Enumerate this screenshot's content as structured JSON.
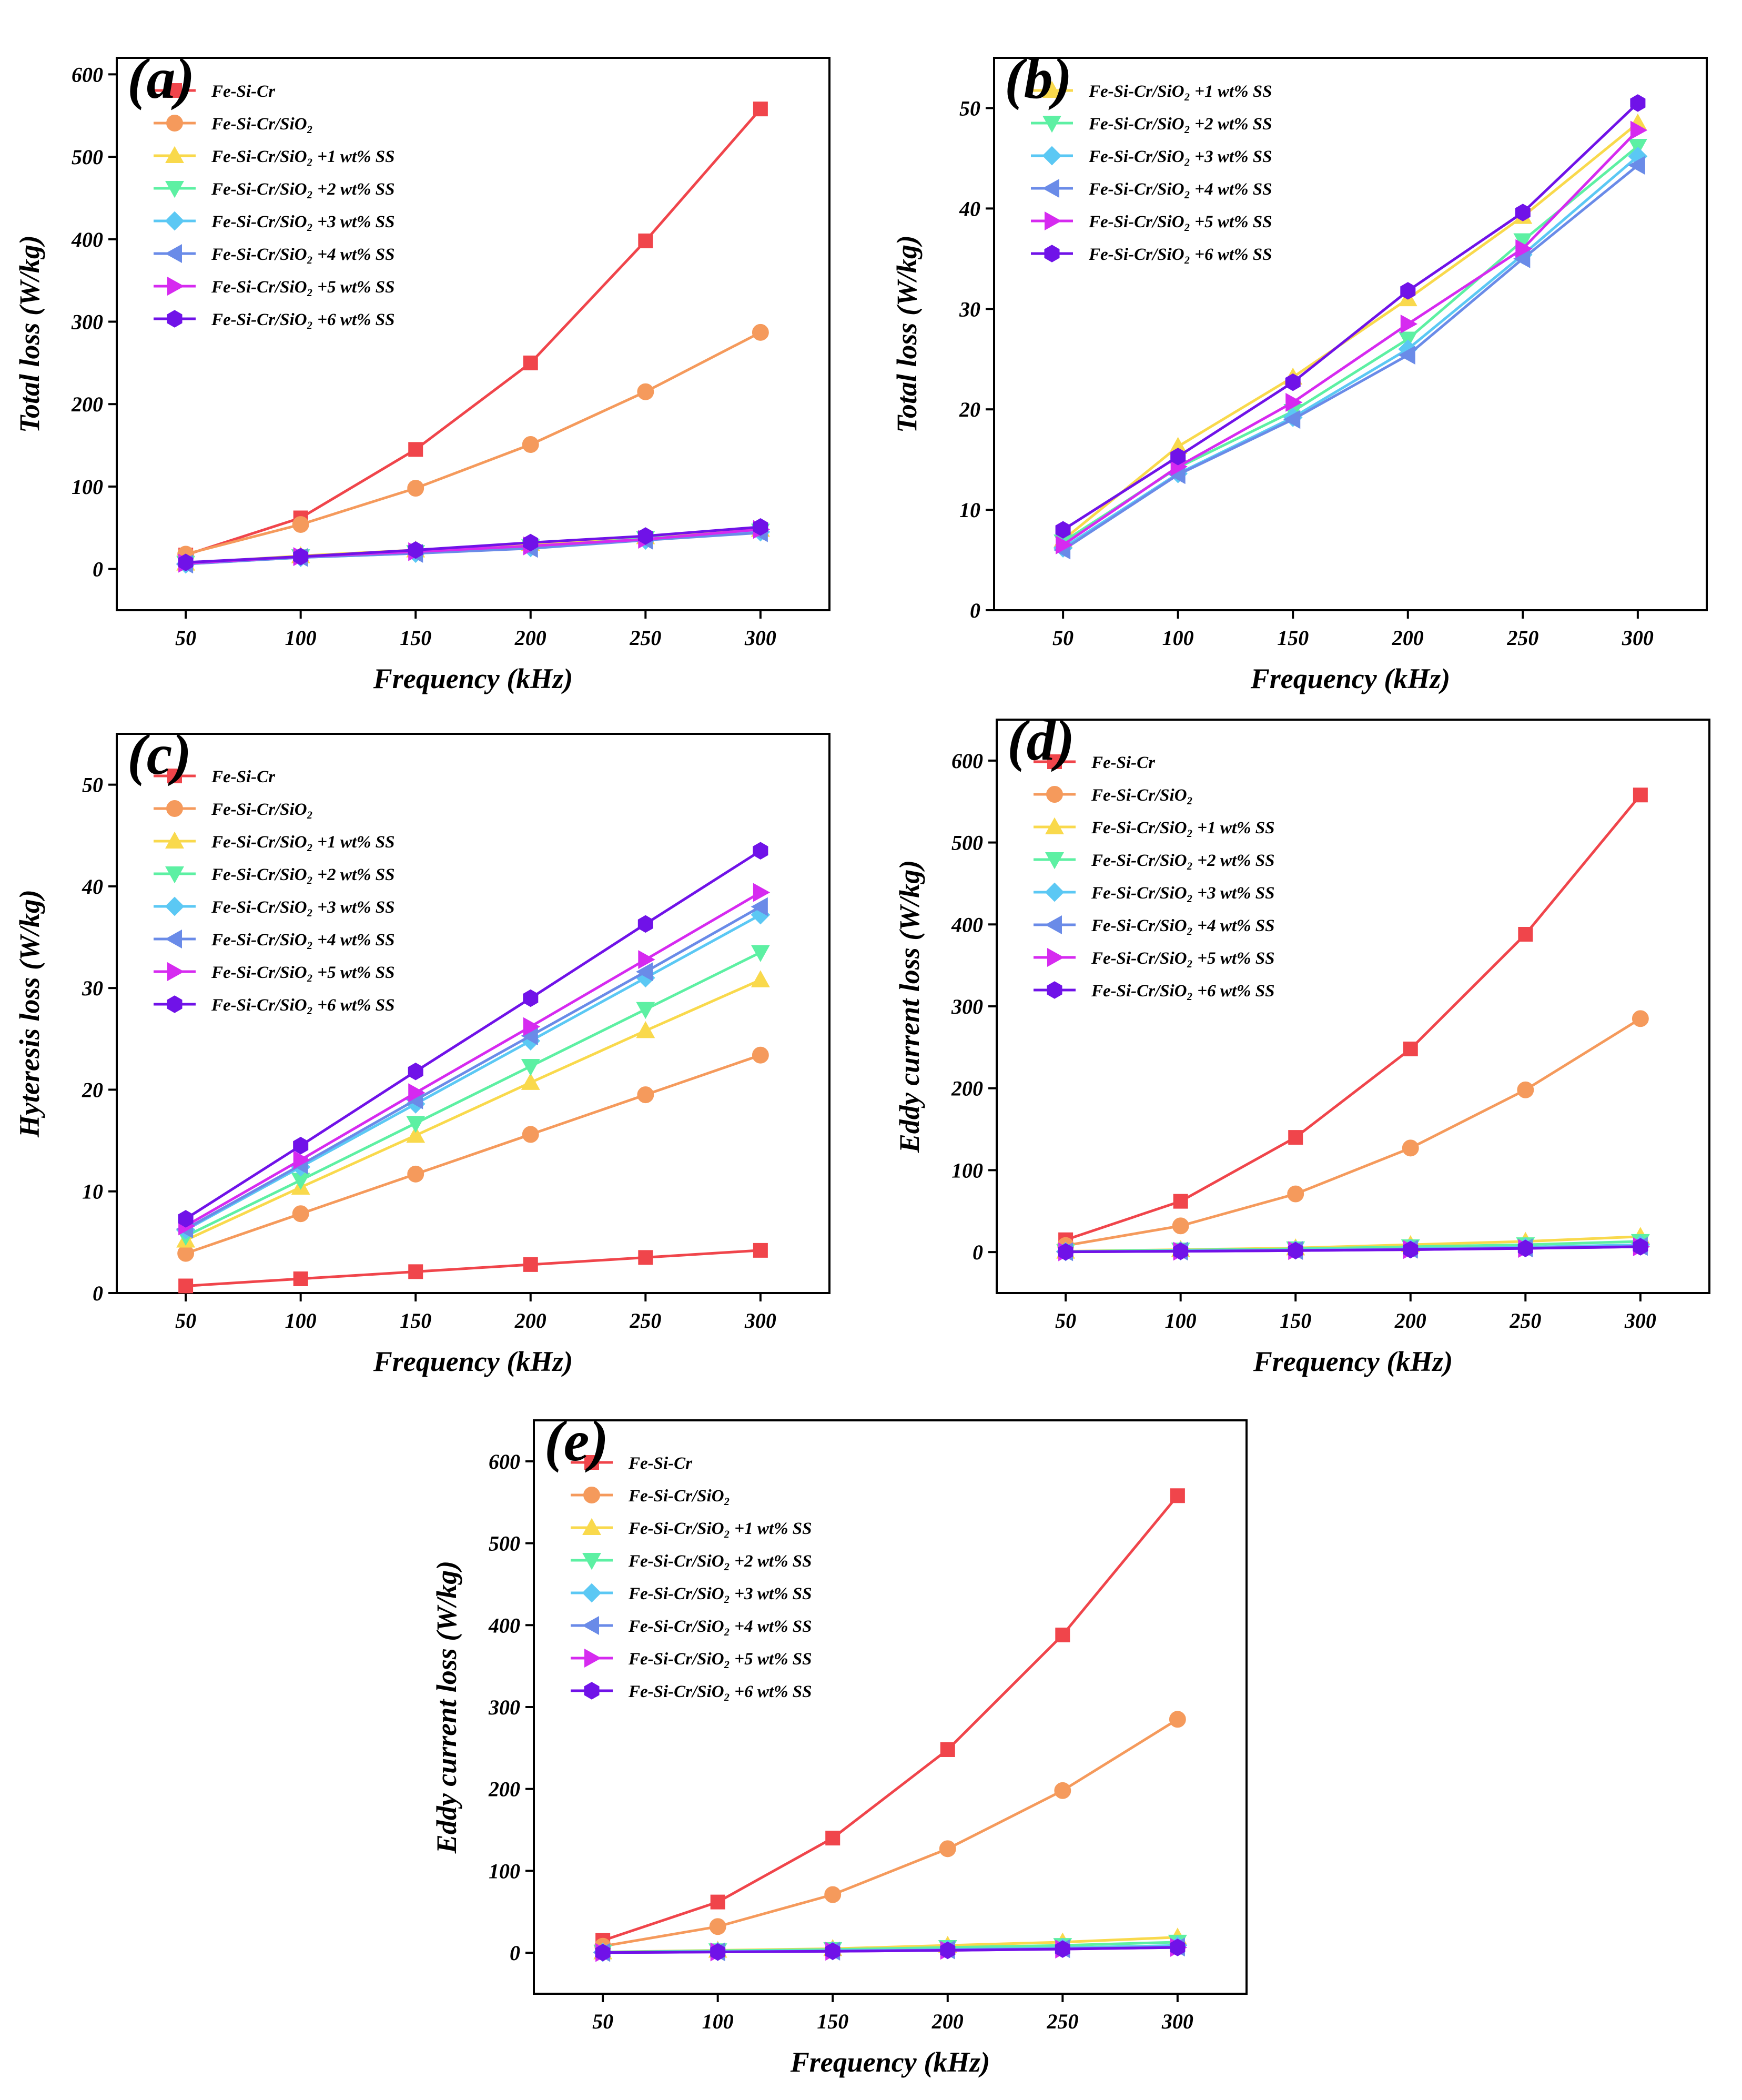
{
  "figure": {
    "x_axis_label": "Frequency (kHz)"
  },
  "chart_data": [
    {
      "panel": "(a)",
      "type": "line",
      "xlabel": "Frequency (kHz)",
      "ylabel": "Total loss (W/kg)",
      "x": [
        50,
        100,
        150,
        200,
        250,
        300
      ],
      "xticks": [
        "50",
        "100",
        "150",
        "200",
        "250",
        "300"
      ],
      "xlim": [
        20,
        330
      ],
      "ylim": [
        -50,
        620
      ],
      "yticks": [
        "0",
        "100",
        "200",
        "300",
        "400",
        "500",
        "600"
      ],
      "legend": "top-left",
      "series": [
        {
          "name": "Fe-Si-Cr",
          "color": "#f0454b",
          "marker": "square",
          "values": [
            17,
            62,
            145,
            250,
            398,
            558
          ]
        },
        {
          "name": "Fe-Si-Cr/SiO₂",
          "color": "#f59a5c",
          "marker": "circle",
          "values": [
            18,
            54,
            98,
            151,
            215,
            287
          ]
        },
        {
          "name": "Fe-Si-Cr/SiO₂ +1 wt% SS",
          "color": "#f9d94c",
          "marker": "triangle-up",
          "values": [
            7,
            16,
            23,
            31,
            39,
            48
          ]
        },
        {
          "name": "Fe-Si-Cr/SiO₂ +2 wt% SS",
          "color": "#5df0a3",
          "marker": "triangle-down",
          "values": [
            7,
            15,
            20,
            27,
            37,
            46
          ]
        },
        {
          "name": "Fe-Si-Cr/SiO₂ +3 wt% SS",
          "color": "#5bc8f4",
          "marker": "diamond",
          "values": [
            6,
            14,
            19,
            26,
            35,
            45
          ]
        },
        {
          "name": "Fe-Si-Cr/SiO₂ +4 wt% SS",
          "color": "#6a8be8",
          "marker": "triangle-left",
          "values": [
            6,
            14,
            19,
            25,
            35,
            44
          ]
        },
        {
          "name": "Fe-Si-Cr/SiO₂ +5 wt% SS",
          "color": "#d62af0",
          "marker": "triangle-right",
          "values": [
            7,
            15,
            21,
            28,
            36,
            48
          ]
        },
        {
          "name": "Fe-Si-Cr/SiO₂ +6 wt% SS",
          "color": "#7012e8",
          "marker": "hexagon",
          "values": [
            8,
            15,
            23,
            32,
            40,
            51
          ]
        }
      ]
    },
    {
      "panel": "(b)",
      "type": "line",
      "xlabel": "Frequency (kHz)",
      "ylabel": "Total loss (W/kg)",
      "x": [
        50,
        100,
        150,
        200,
        250,
        300
      ],
      "xticks": [
        "50",
        "100",
        "150",
        "200",
        "250",
        "300"
      ],
      "xlim": [
        20,
        330
      ],
      "ylim": [
        0,
        55
      ],
      "yticks": [
        "0",
        "10",
        "20",
        "30",
        "40",
        "50"
      ],
      "legend": "top-left",
      "series": [
        {
          "name": "Fe-Si-Cr/SiO₂ +1 wt% SS",
          "color": "#f9d94c",
          "marker": "triangle-up",
          "values": [
            7,
            16.3,
            23.2,
            31,
            39.2,
            48.5
          ]
        },
        {
          "name": "Fe-Si-Cr/SiO₂ +2 wt% SS",
          "color": "#5df0a3",
          "marker": "triangle-down",
          "values": [
            6.8,
            14.2,
            19.8,
            27,
            36.8,
            46.2
          ]
        },
        {
          "name": "Fe-Si-Cr/SiO₂ +3 wt% SS",
          "color": "#5bc8f4",
          "marker": "diamond",
          "values": [
            6.2,
            13.6,
            19.2,
            26,
            35.4,
            45.2
          ]
        },
        {
          "name": "Fe-Si-Cr/SiO₂ +4 wt% SS",
          "color": "#6a8be8",
          "marker": "triangle-left",
          "values": [
            6,
            13.5,
            19,
            25.4,
            35,
            44.3
          ]
        },
        {
          "name": "Fe-Si-Cr/SiO₂ +5 wt% SS",
          "color": "#d62af0",
          "marker": "triangle-right",
          "values": [
            6.5,
            14.3,
            20.7,
            28.5,
            36,
            47.8
          ]
        },
        {
          "name": "Fe-Si-Cr/SiO₂ +6 wt% SS",
          "color": "#7012e8",
          "marker": "hexagon",
          "values": [
            8,
            15.3,
            22.7,
            31.8,
            39.6,
            50.5
          ]
        }
      ]
    },
    {
      "panel": "(c)",
      "type": "line",
      "xlabel": "Frequency (kHz)",
      "ylabel": "Hyteresis loss (W/kg)",
      "x": [
        50,
        100,
        150,
        200,
        250,
        300
      ],
      "xticks": [
        "50",
        "100",
        "150",
        "200",
        "250",
        "300"
      ],
      "xlim": [
        20,
        330
      ],
      "ylim": [
        0,
        55
      ],
      "yticks": [
        "0",
        "10",
        "20",
        "30",
        "40",
        "50"
      ],
      "legend": "top-left",
      "series": [
        {
          "name": "Fe-Si-Cr",
          "color": "#f0454b",
          "marker": "square",
          "values": [
            0.7,
            1.4,
            2.1,
            2.8,
            3.5,
            4.2
          ]
        },
        {
          "name": "Fe-Si-Cr/SiO₂",
          "color": "#f59a5c",
          "marker": "circle",
          "values": [
            3.9,
            7.8,
            11.7,
            15.6,
            19.5,
            23.4
          ]
        },
        {
          "name": "Fe-Si-Cr/SiO₂ +1 wt% SS",
          "color": "#f9d94c",
          "marker": "triangle-up",
          "values": [
            5.2,
            10.4,
            15.5,
            20.7,
            25.8,
            30.8
          ]
        },
        {
          "name": "Fe-Si-Cr/SiO₂ +2 wt% SS",
          "color": "#5df0a3",
          "marker": "triangle-down",
          "values": [
            5.6,
            11.1,
            16.7,
            22.3,
            27.9,
            33.5
          ]
        },
        {
          "name": "Fe-Si-Cr/SiO₂ +3 wt% SS",
          "color": "#5bc8f4",
          "marker": "diamond",
          "values": [
            6.2,
            12.4,
            18.6,
            24.8,
            31,
            37.2
          ]
        },
        {
          "name": "Fe-Si-Cr/SiO₂ +4 wt% SS",
          "color": "#6a8be8",
          "marker": "triangle-left",
          "values": [
            6.3,
            12.6,
            19,
            25.3,
            31.6,
            38
          ]
        },
        {
          "name": "Fe-Si-Cr/SiO₂ +5 wt% SS",
          "color": "#d62af0",
          "marker": "triangle-right",
          "values": [
            6.6,
            13.1,
            19.7,
            26.2,
            32.8,
            39.4
          ]
        },
        {
          "name": "Fe-Si-Cr/SiO₂ +6 wt% SS",
          "color": "#7012e8",
          "marker": "hexagon",
          "values": [
            7.3,
            14.5,
            21.8,
            29,
            36.3,
            43.5
          ]
        }
      ]
    },
    {
      "panel": "(d)",
      "type": "line",
      "xlabel": "Frequency (kHz)",
      "ylabel": "Eddy current loss (W/kg)",
      "x": [
        50,
        100,
        150,
        200,
        250,
        300
      ],
      "xticks": [
        "50",
        "100",
        "150",
        "200",
        "250",
        "300"
      ],
      "xlim": [
        20,
        330
      ],
      "ylim": [
        -50,
        650
      ],
      "yticks": [
        "0",
        "100",
        "200",
        "300",
        "400",
        "500",
        "600"
      ],
      "legend": "top-left",
      "series": [
        {
          "name": "Fe-Si-Cr",
          "color": "#f0454b",
          "marker": "square",
          "values": [
            15,
            62,
            140,
            248,
            388,
            558
          ]
        },
        {
          "name": "Fe-Si-Cr/SiO₂",
          "color": "#f59a5c",
          "marker": "circle",
          "values": [
            8,
            32,
            71,
            127,
            198,
            285
          ]
        },
        {
          "name": "Fe-Si-Cr/SiO₂ +1 wt% SS",
          "color": "#f9d94c",
          "marker": "triangle-up",
          "values": [
            1,
            3,
            5,
            9,
            13,
            19
          ]
        },
        {
          "name": "Fe-Si-Cr/SiO₂ +2 wt% SS",
          "color": "#5df0a3",
          "marker": "triangle-down",
          "values": [
            0.8,
            2.5,
            4,
            6.5,
            9,
            13
          ]
        },
        {
          "name": "Fe-Si-Cr/SiO₂ +3 wt% SS",
          "color": "#5bc8f4",
          "marker": "diamond",
          "values": [
            0.5,
            1.5,
            2.5,
            4,
            6,
            9
          ]
        },
        {
          "name": "Fe-Si-Cr/SiO₂ +4 wt% SS",
          "color": "#6a8be8",
          "marker": "triangle-left",
          "values": [
            0.4,
            1.2,
            2,
            3.5,
            5,
            7
          ]
        },
        {
          "name": "Fe-Si-Cr/SiO₂ +5 wt% SS",
          "color": "#d62af0",
          "marker": "triangle-right",
          "values": [
            0.3,
            1,
            1.8,
            3,
            4.5,
            6.5
          ]
        },
        {
          "name": "Fe-Si-Cr/SiO₂ +6 wt% SS",
          "color": "#7012e8",
          "marker": "hexagon",
          "values": [
            0.3,
            1,
            1.8,
            3,
            4.5,
            6.5
          ]
        }
      ]
    },
    {
      "panel": "(e)",
      "type": "line",
      "xlabel": "Frequency (kHz)",
      "ylabel": "Eddy current loss (W/kg)",
      "x": [
        50,
        100,
        150,
        200,
        250,
        300
      ],
      "xticks": [
        "50",
        "100",
        "150",
        "200",
        "250",
        "300"
      ],
      "xlim": [
        20,
        330
      ],
      "ylim": [
        -50,
        650
      ],
      "yticks": [
        "0",
        "100",
        "200",
        "300",
        "400",
        "500",
        "600"
      ],
      "legend": "top-left",
      "series": [
        {
          "name": "Fe-Si-Cr",
          "color": "#f0454b",
          "marker": "square",
          "values": [
            15,
            62,
            140,
            248,
            388,
            558
          ]
        },
        {
          "name": "Fe-Si-Cr/SiO₂",
          "color": "#f59a5c",
          "marker": "circle",
          "values": [
            8,
            32,
            71,
            127,
            198,
            285
          ]
        },
        {
          "name": "Fe-Si-Cr/SiO₂ +1 wt% SS",
          "color": "#f9d94c",
          "marker": "triangle-up",
          "values": [
            1,
            3,
            5,
            9,
            13,
            19
          ]
        },
        {
          "name": "Fe-Si-Cr/SiO₂ +2 wt% SS",
          "color": "#5df0a3",
          "marker": "triangle-down",
          "values": [
            0.8,
            2.5,
            4,
            6.5,
            9,
            13
          ]
        },
        {
          "name": "Fe-Si-Cr/SiO₂ +3 wt% SS",
          "color": "#5bc8f4",
          "marker": "diamond",
          "values": [
            0.5,
            1.5,
            2.5,
            4,
            6,
            9
          ]
        },
        {
          "name": "Fe-Si-Cr/SiO₂ +4 wt% SS",
          "color": "#6a8be8",
          "marker": "triangle-left",
          "values": [
            0.4,
            1.2,
            2,
            3.5,
            5,
            7
          ]
        },
        {
          "name": "Fe-Si-Cr/SiO₂ +5 wt% SS",
          "color": "#d62af0",
          "marker": "triangle-right",
          "values": [
            0.3,
            1,
            1.8,
            3,
            4.5,
            6.5
          ]
        },
        {
          "name": "Fe-Si-Cr/SiO₂ +6 wt% SS",
          "color": "#7012e8",
          "marker": "hexagon",
          "values": [
            0.3,
            1,
            1.8,
            3,
            4.5,
            6.5
          ]
        }
      ]
    }
  ]
}
